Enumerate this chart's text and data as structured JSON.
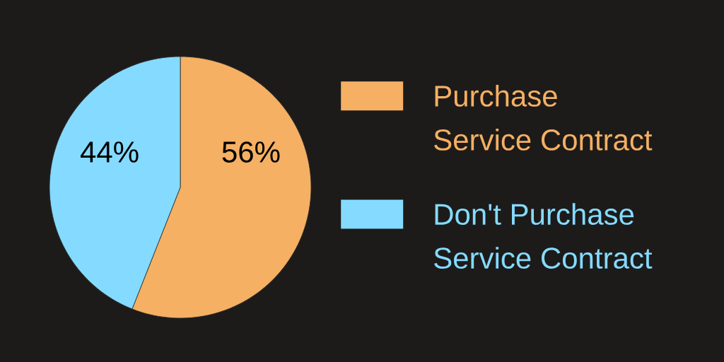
{
  "chart_data": {
    "type": "pie",
    "categories": [
      "Purchase Service Contract",
      "Don't Purchase Service Contract"
    ],
    "values": [
      56,
      44
    ],
    "colors": [
      "#f5b063",
      "#84dbff"
    ],
    "value_labels": [
      "56%",
      "44%"
    ],
    "legend": "right"
  }
}
